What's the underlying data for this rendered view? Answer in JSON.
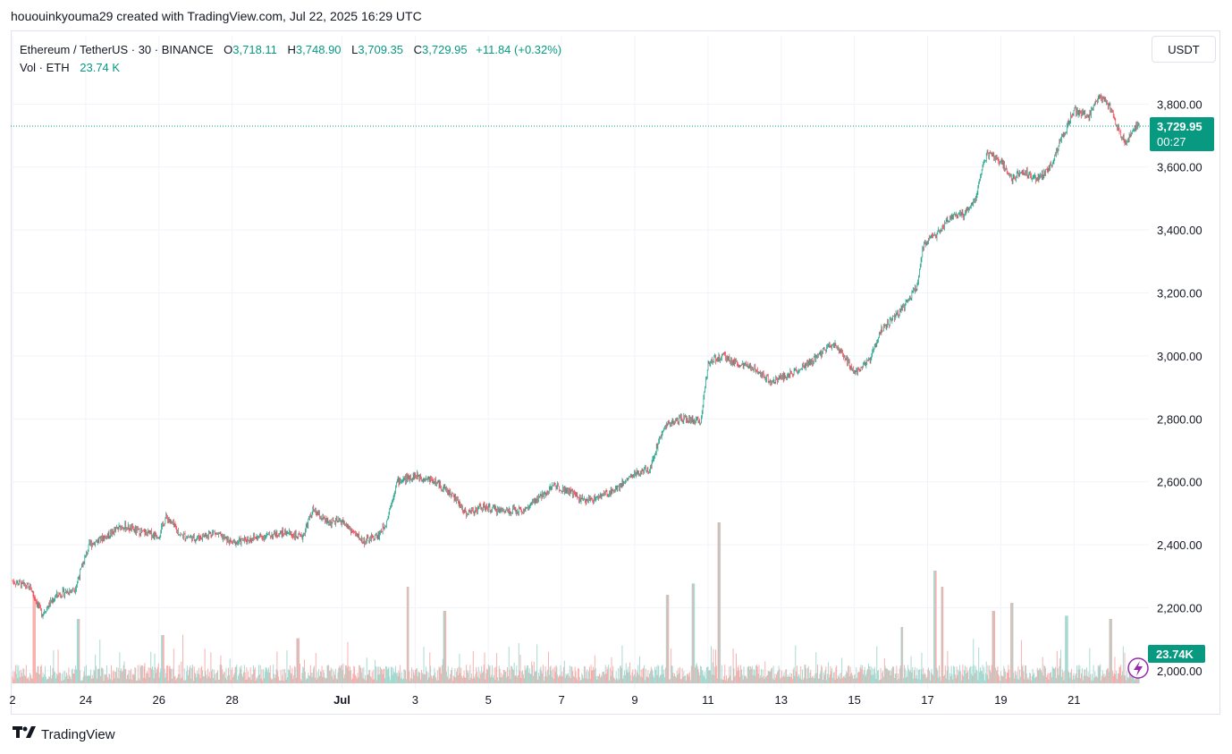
{
  "caption": "hououinkyouma29 created with TradingView.com, Jul 22, 2025 16:29 UTC",
  "legend": {
    "symbol": "Ethereum / TetherUS · 30 · BINANCE",
    "open_label": "O",
    "open": "3,718.11",
    "high_label": "H",
    "high": "3,748.90",
    "low_label": "L",
    "low": "3,709.35",
    "close_label": "C",
    "close": "3,729.95",
    "change": "+11.84 (+0.32%)",
    "vol_label": "Vol · ETH",
    "vol_value": "23.74 K"
  },
  "currency_button": "USDT",
  "brand": "TradingView",
  "colors": {
    "up": "#089981",
    "down": "#f23645",
    "vol_up": "#9fd6cd",
    "vol_down": "#f7a9a7",
    "grid": "#f0f3fa",
    "accent": "#089981",
    "bolt": "#9c27b0"
  },
  "chart_data": {
    "type": "candlestick",
    "title": "Ethereum / TetherUS · 30 · BINANCE",
    "price_axis": {
      "ylim": [
        1960,
        3960
      ],
      "ticks": [
        "2,000.00",
        "2,200.00",
        "2,400.00",
        "2,600.00",
        "2,800.00",
        "3,000.00",
        "3,200.00",
        "3,400.00",
        "3,600.00",
        "3,800.00"
      ],
      "tick_values": [
        2000,
        2200,
        2400,
        2600,
        2800,
        3000,
        3200,
        3400,
        3600,
        3800
      ]
    },
    "time_axis": {
      "xlim": [
        0,
        30.8
      ],
      "ticks": [
        "2",
        "24",
        "26",
        "28",
        "Jul",
        "3",
        "5",
        "7",
        "9",
        "11",
        "13",
        "15",
        "17",
        "19",
        "21"
      ],
      "tick_positions": [
        0,
        2,
        4,
        6,
        9,
        11,
        13,
        15,
        17,
        19,
        21,
        23,
        25,
        27,
        29
      ]
    },
    "last_price_label": "3,729.95",
    "countdown_label": "00:27",
    "last_price": 3729.95,
    "last_volume_label": "23.74K",
    "price_path": [
      [
        0.0,
        2285
      ],
      [
        0.5,
        2262
      ],
      [
        0.8,
        2180
      ],
      [
        1.2,
        2240
      ],
      [
        1.7,
        2260
      ],
      [
        1.9,
        2330
      ],
      [
        2.1,
        2400
      ],
      [
        2.6,
        2430
      ],
      [
        3.0,
        2460
      ],
      [
        3.5,
        2440
      ],
      [
        4.0,
        2430
      ],
      [
        4.2,
        2490
      ],
      [
        4.6,
        2430
      ],
      [
        5.0,
        2420
      ],
      [
        5.5,
        2440
      ],
      [
        6.0,
        2405
      ],
      [
        6.5,
        2420
      ],
      [
        7.0,
        2430
      ],
      [
        7.5,
        2440
      ],
      [
        7.9,
        2420
      ],
      [
        8.2,
        2510
      ],
      [
        8.6,
        2470
      ],
      [
        9.0,
        2475
      ],
      [
        9.3,
        2440
      ],
      [
        9.6,
        2410
      ],
      [
        10.0,
        2430
      ],
      [
        10.2,
        2470
      ],
      [
        10.5,
        2600
      ],
      [
        11.0,
        2620
      ],
      [
        11.5,
        2605
      ],
      [
        12.0,
        2560
      ],
      [
        12.4,
        2500
      ],
      [
        12.8,
        2520
      ],
      [
        13.3,
        2510
      ],
      [
        14.0,
        2510
      ],
      [
        14.4,
        2550
      ],
      [
        14.8,
        2590
      ],
      [
        15.2,
        2570
      ],
      [
        15.6,
        2540
      ],
      [
        16.0,
        2550
      ],
      [
        16.5,
        2580
      ],
      [
        16.9,
        2620
      ],
      [
        17.4,
        2640
      ],
      [
        17.8,
        2780
      ],
      [
        18.3,
        2800
      ],
      [
        18.8,
        2790
      ],
      [
        19.0,
        2980
      ],
      [
        19.4,
        3000
      ],
      [
        19.9,
        2970
      ],
      [
        20.3,
        2960
      ],
      [
        20.7,
        2920
      ],
      [
        21.2,
        2940
      ],
      [
        21.7,
        2970
      ],
      [
        22.0,
        3000
      ],
      [
        22.4,
        3040
      ],
      [
        22.7,
        3000
      ],
      [
        23.0,
        2950
      ],
      [
        23.4,
        2980
      ],
      [
        23.7,
        3080
      ],
      [
        24.0,
        3110
      ],
      [
        24.3,
        3150
      ],
      [
        24.7,
        3220
      ],
      [
        24.9,
        3360
      ],
      [
        25.2,
        3380
      ],
      [
        25.6,
        3440
      ],
      [
        26.0,
        3450
      ],
      [
        26.3,
        3500
      ],
      [
        26.6,
        3640
      ],
      [
        27.0,
        3620
      ],
      [
        27.3,
        3560
      ],
      [
        27.6,
        3590
      ],
      [
        28.0,
        3560
      ],
      [
        28.3,
        3590
      ],
      [
        28.7,
        3700
      ],
      [
        29.0,
        3780
      ],
      [
        29.4,
        3760
      ],
      [
        29.7,
        3830
      ],
      [
        30.0,
        3790
      ],
      [
        30.2,
        3720
      ],
      [
        30.4,
        3680
      ],
      [
        30.6,
        3710
      ],
      [
        30.7,
        3730
      ]
    ],
    "volume_spikes": [
      [
        0.6,
        0.55
      ],
      [
        1.8,
        0.4
      ],
      [
        4.1,
        0.3
      ],
      [
        7.8,
        0.28
      ],
      [
        10.8,
        0.6
      ],
      [
        11.8,
        0.45
      ],
      [
        17.9,
        0.55
      ],
      [
        18.6,
        0.62
      ],
      [
        19.3,
        1.0
      ],
      [
        24.3,
        0.35
      ],
      [
        25.2,
        0.7
      ],
      [
        25.4,
        0.6
      ],
      [
        26.8,
        0.45
      ],
      [
        27.3,
        0.5
      ],
      [
        28.8,
        0.42
      ],
      [
        30.0,
        0.4
      ]
    ]
  }
}
